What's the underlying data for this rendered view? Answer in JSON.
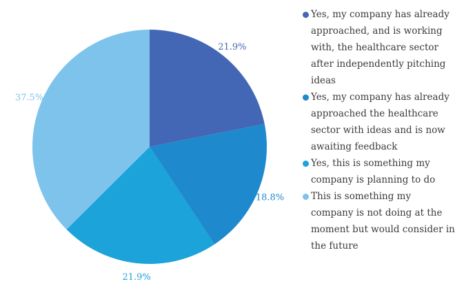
{
  "chart_data": {
    "type": "pie",
    "title": "",
    "categories": [
      "Yes, my company has already approached, and is working with, the healthcare sector after independently pitching ideas",
      "Yes, my company has already approached the healthcare sector with ideas and is now awaiting feedback",
      "Yes, this is something my company is planning to do",
      "This is something my company is not doing at the moment but would consider in the future"
    ],
    "values": [
      21.9,
      18.8,
      21.9,
      37.5
    ],
    "labels": [
      "21.9%",
      "18.8%",
      "21.9%",
      "37.5%"
    ],
    "colors": [
      "#4367b5",
      "#1e89cd",
      "#1ca3da",
      "#7ec3eb"
    ],
    "start_angle_deg": 0,
    "direction": "clockwise",
    "legend_position": "right"
  }
}
